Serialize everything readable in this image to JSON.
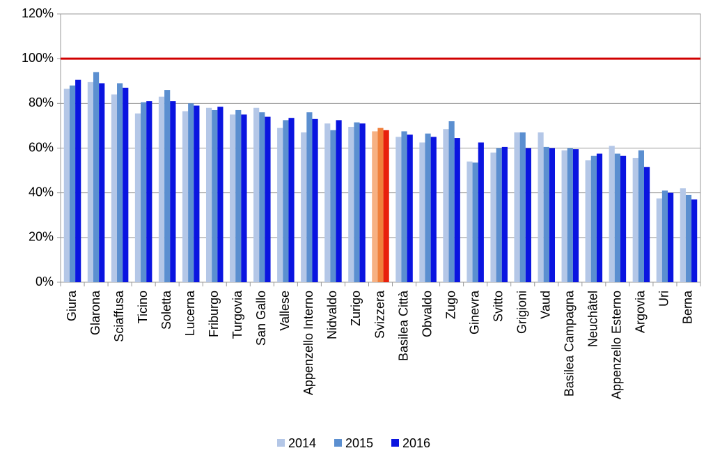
{
  "chart_data": {
    "type": "bar",
    "categories": [
      "Giura",
      "Glarona",
      "Sciaffusa",
      "Ticino",
      "Soletta",
      "Lucerna",
      "Friburgo",
      "Turgovia",
      "San Gallo",
      "Vallese",
      "Appenzello Interno",
      "Nidvaldo",
      "Zurigo",
      "Svizzera",
      "Basilea Città",
      "Obvaldo",
      "Zugo",
      "Ginevra",
      "Svitto",
      "Grigioni",
      "Vaud",
      "Basilea Campagna",
      "Neuchâtel",
      "Appenzello Esterno",
      "Argovia",
      "Uri",
      "Berna"
    ],
    "series": [
      {
        "name": "2014",
        "color": "#b4c7e7",
        "values": [
          86.5,
          89.5,
          84,
          75.5,
          83,
          76.5,
          78,
          75,
          78,
          69,
          67,
          71,
          69.5,
          67.5,
          65,
          62.5,
          68.5,
          54,
          58,
          67,
          67,
          59,
          54.5,
          61,
          55.5,
          37.5,
          42
        ]
      },
      {
        "name": "2015",
        "color": "#5b8fd0",
        "values": [
          88,
          94,
          89,
          80.5,
          86,
          80,
          77,
          77,
          76,
          72.5,
          76,
          68,
          71.5,
          69,
          67.5,
          66.5,
          72,
          53.5,
          60,
          67,
          60.5,
          60,
          56.5,
          57.5,
          59,
          41,
          39
        ]
      },
      {
        "name": "2016",
        "color": "#0a14e0",
        "values": [
          90.5,
          89,
          87,
          81,
          81,
          79,
          78.5,
          75,
          74,
          73.5,
          73,
          72.5,
          71,
          68,
          66,
          65,
          64.5,
          62.5,
          60.5,
          60,
          60,
          59.5,
          57.5,
          56.5,
          51.5,
          40,
          37
        ]
      }
    ],
    "highlight_category": "Svizzera",
    "highlight_colors": [
      "#f6b183",
      "#f0803c",
      "#e8200c"
    ],
    "reference_line": {
      "value": 100,
      "color": "#d00000"
    },
    "ylim": [
      0,
      120
    ],
    "yticks": [
      {
        "value": 0,
        "label": "0%"
      },
      {
        "value": 20,
        "label": "20%"
      },
      {
        "value": 40,
        "label": "40%"
      },
      {
        "value": 60,
        "label": "60%"
      },
      {
        "value": 80,
        "label": "80%"
      },
      {
        "value": 100,
        "label": "100%"
      },
      {
        "value": 120,
        "label": "120%"
      }
    ],
    "grid": true,
    "legend": "bottom"
  }
}
